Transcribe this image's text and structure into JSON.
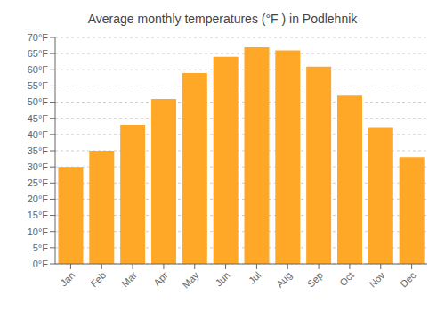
{
  "chart_data": {
    "type": "bar",
    "title": "Average monthly temperatures (°F ) in Podlehnik",
    "categories": [
      "Jan",
      "Feb",
      "Mar",
      "Apr",
      "May",
      "Jun",
      "Jul",
      "Aug",
      "Sep",
      "Oct",
      "Nov",
      "Dec"
    ],
    "values": [
      30,
      35,
      43,
      51,
      59,
      64,
      67,
      66,
      61,
      52,
      42,
      33
    ],
    "color": "#FFA726",
    "ylim": [
      0,
      70
    ],
    "yticks": [
      {
        "value": 0,
        "label": "0°F"
      },
      {
        "value": 5,
        "label": "5°F"
      },
      {
        "value": 10,
        "label": "10°F"
      },
      {
        "value": 15,
        "label": "15°F"
      },
      {
        "value": 20,
        "label": "20°F"
      },
      {
        "value": 25,
        "label": "25°F"
      },
      {
        "value": 30,
        "label": "30°F"
      },
      {
        "value": 35,
        "label": "35°F"
      },
      {
        "value": 40,
        "label": "40°F"
      },
      {
        "value": 45,
        "label": "45°F"
      },
      {
        "value": 50,
        "label": "50°F"
      },
      {
        "value": 55,
        "label": "55°F"
      },
      {
        "value": 60,
        "label": "60°F"
      },
      {
        "value": 65,
        "label": "65°F"
      },
      {
        "value": 70,
        "label": "70°F"
      }
    ],
    "grid": true
  }
}
